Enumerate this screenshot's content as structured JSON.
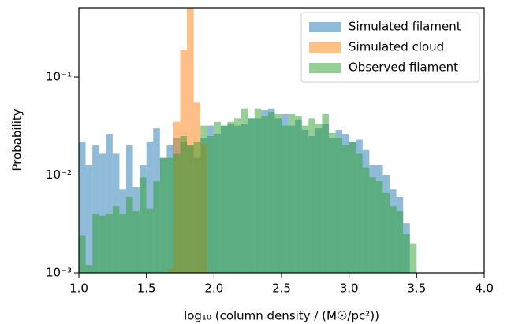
{
  "chart_data": {
    "type": "histogram",
    "xlabel": "log₁₀ (column density / (M☉/pc²))",
    "ylabel": "Probability",
    "xlim": [
      1.0,
      4.0
    ],
    "xticks": [
      {
        "value": 1,
        "label": "1.0"
      },
      {
        "value": 1.5,
        "label": "1.5"
      },
      {
        "value": 2,
        "label": "2.0"
      },
      {
        "value": 2.5,
        "label": "2.5"
      },
      {
        "value": 3,
        "label": "3.0"
      },
      {
        "value": 3.5,
        "label": "3.5"
      },
      {
        "value": 4,
        "label": "4.0"
      }
    ],
    "ylim": [
      0.001,
      0.51
    ],
    "yticks": [
      {
        "value": 0.001,
        "label": "10⁻³"
      },
      {
        "value": 0.01,
        "label": "10⁻²"
      },
      {
        "value": 0.1,
        "label": "10⁻¹"
      }
    ],
    "log_y": true,
    "legend": "upper right",
    "series": [
      {
        "name": "Simulated filament",
        "color": "#1f77b4",
        "bins": [
          1.0,
          1.05,
          1.1,
          1.15,
          1.2,
          1.25,
          1.3,
          1.35,
          1.4,
          1.45,
          1.5,
          1.55,
          1.6,
          1.65,
          1.7,
          1.75,
          1.8,
          1.85,
          1.9,
          1.95,
          2.0,
          2.05,
          2.1,
          2.15,
          2.2,
          2.25,
          2.3,
          2.35,
          2.4,
          2.45,
          2.5,
          2.55,
          2.6,
          2.65,
          2.7,
          2.75,
          2.8,
          2.85,
          2.9,
          2.95,
          3.0,
          3.05,
          3.1,
          3.15,
          3.2,
          3.25,
          3.3,
          3.35,
          3.4,
          3.45
        ],
        "values": [
          0.022,
          0.0126,
          0.02,
          0.0165,
          0.026,
          0.0165,
          0.0072,
          0.02,
          0.0075,
          0.0126,
          0.022,
          0.03,
          0.015,
          0.02,
          0.024,
          0.022,
          0.02,
          0.015,
          0.024,
          0.032,
          0.026,
          0.032,
          0.033,
          0.032,
          0.033,
          0.038,
          0.038,
          0.046,
          0.048,
          0.038,
          0.042,
          0.032,
          0.037,
          0.029,
          0.025,
          0.03,
          0.033,
          0.024,
          0.029,
          0.026,
          0.022,
          0.023,
          0.018,
          0.0126,
          0.0126,
          0.01,
          0.0072,
          0.006,
          0.0032
        ]
      },
      {
        "name": "Simulated cloud",
        "color": "#ff7f0e",
        "bins": [
          1.65,
          1.7,
          1.75,
          1.8,
          1.85,
          1.9,
          1.95
        ],
        "values": [
          0.0011,
          0.035,
          0.19,
          0.6,
          0.055,
          0.021
        ]
      },
      {
        "name": "Observed filament",
        "color": "#2ca02c",
        "bins": [
          1.0,
          1.05,
          1.1,
          1.15,
          1.2,
          1.25,
          1.3,
          1.35,
          1.4,
          1.45,
          1.5,
          1.55,
          1.6,
          1.65,
          1.7,
          1.75,
          1.8,
          1.85,
          1.9,
          1.95,
          2.0,
          2.05,
          2.1,
          2.15,
          2.2,
          2.25,
          2.3,
          2.35,
          2.4,
          2.45,
          2.5,
          2.55,
          2.6,
          2.65,
          2.7,
          2.75,
          2.8,
          2.85,
          2.9,
          2.95,
          3.0,
          3.05,
          3.1,
          3.15,
          3.2,
          3.25,
          3.3,
          3.35,
          3.4,
          3.45,
          3.5
        ],
        "values": [
          0.0024,
          0.0012,
          0.004,
          0.0038,
          0.004,
          0.0048,
          0.004,
          0.006,
          0.0043,
          0.0095,
          0.0045,
          0.0087,
          0.015,
          0.015,
          0.0165,
          0.025,
          0.02,
          0.022,
          0.032,
          0.025,
          0.035,
          0.032,
          0.035,
          0.038,
          0.048,
          0.038,
          0.048,
          0.04,
          0.044,
          0.042,
          0.032,
          0.042,
          0.04,
          0.032,
          0.038,
          0.033,
          0.042,
          0.027,
          0.024,
          0.02,
          0.022,
          0.0165,
          0.012,
          0.0095,
          0.0087,
          0.0066,
          0.0048,
          0.0043,
          0.0025,
          0.002
        ]
      }
    ]
  }
}
